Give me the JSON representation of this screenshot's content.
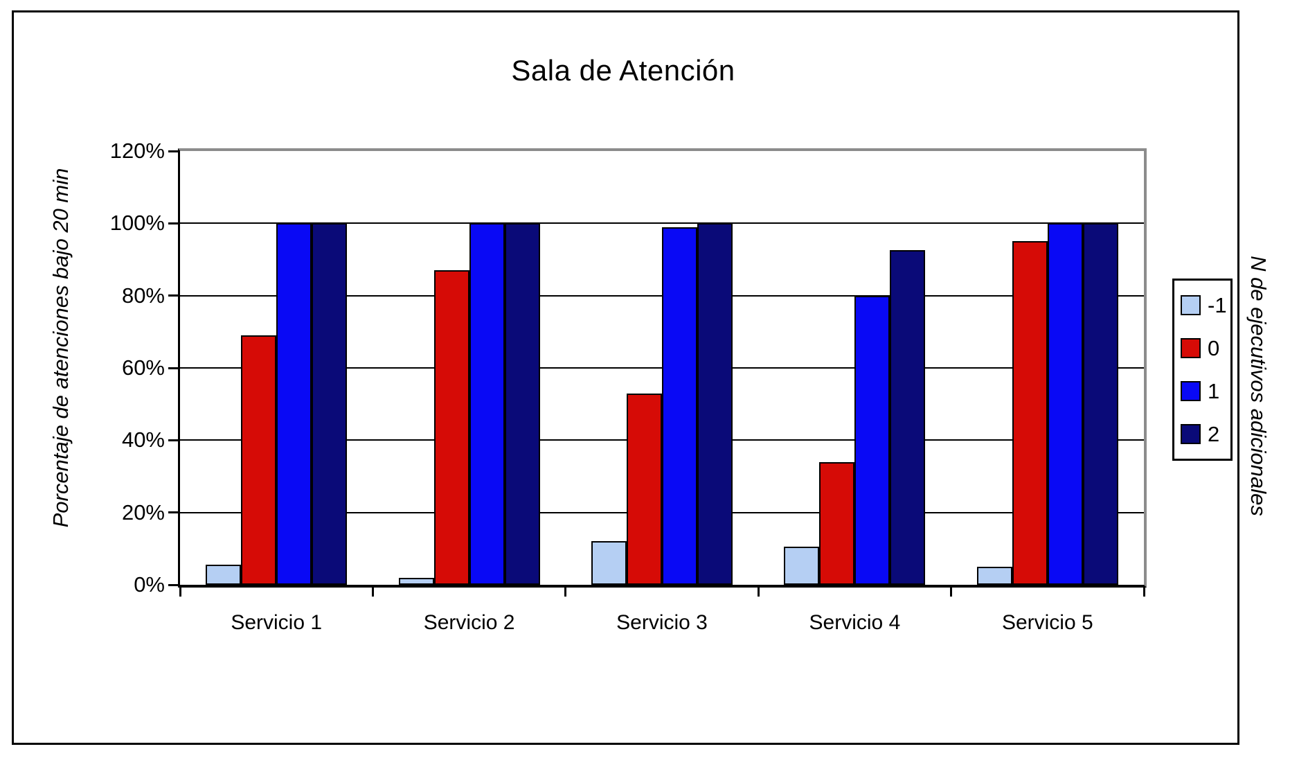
{
  "title": "Sala de Atención",
  "chart_data": {
    "type": "bar",
    "title": "Sala de Atención",
    "categories": [
      "Servicio 1",
      "Servicio 2",
      "Servicio 3",
      "Servicio 4",
      "Servicio 5"
    ],
    "series": [
      {
        "name": "-1",
        "color": "#B5CFF3",
        "values": [
          5.5,
          2,
          12,
          10.5,
          5
        ]
      },
      {
        "name": "0",
        "color": "#D60B06",
        "values": [
          69,
          87,
          53,
          34,
          95
        ]
      },
      {
        "name": "1",
        "color": "#0909F5",
        "values": [
          100,
          100,
          99,
          80,
          100
        ]
      },
      {
        "name": "2",
        "color": "#0A0A78",
        "values": [
          100,
          100,
          100,
          92.5,
          100
        ]
      }
    ],
    "xlabel": "",
    "ylabel": "Porcentaje de atenciones bajo 20 min",
    "legend_title": "N de ejecutivos adicionales",
    "ylim": [
      0,
      120
    ],
    "ytick_step": 20,
    "ytick_labels": [
      "0%",
      "20%",
      "40%",
      "60%",
      "80%",
      "100%",
      "120%"
    ],
    "grid": true,
    "legend_position": "right",
    "colors": {
      "gridline": "#000000",
      "plot_border_shadow": "#8C8C8C",
      "axis": "#000000"
    }
  }
}
